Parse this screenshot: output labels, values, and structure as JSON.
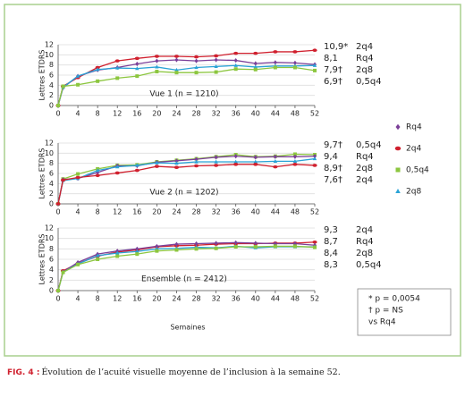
{
  "chart_data": [
    {
      "type": "line",
      "label": "Vue 1 (n = 1210)",
      "y_label": "Lettres ETDRS",
      "x": [
        0,
        1,
        4,
        8,
        12,
        16,
        20,
        24,
        28,
        32,
        36,
        40,
        44,
        48,
        52
      ],
      "xlim": [
        0,
        52
      ],
      "xticks": [
        0,
        4,
        8,
        12,
        16,
        20,
        24,
        28,
        32,
        36,
        40,
        44,
        48,
        52
      ],
      "ylim": [
        0,
        12
      ],
      "yticks": [
        0,
        2,
        4,
        6,
        8,
        10,
        12
      ],
      "grid": true,
      "series": [
        {
          "name": "2q4",
          "color": "#d0202e",
          "marker": "circle",
          "values": [
            0,
            3.8,
            5.5,
            7.5,
            8.8,
            9.3,
            9.7,
            9.7,
            9.6,
            9.8,
            10.3,
            10.3,
            10.6,
            10.6,
            10.9
          ],
          "value_labels": [
            null,
            null,
            null,
            null,
            null,
            null,
            null,
            null,
            null,
            null,
            null,
            null,
            null,
            null,
            "10,9*"
          ]
        },
        {
          "name": "Rq4",
          "color": "#7b3f98",
          "marker": "diamond",
          "values": [
            0,
            3.5,
            5.8,
            7.0,
            7.5,
            8.2,
            8.8,
            9.0,
            8.8,
            9.0,
            8.9,
            8.3,
            8.5,
            8.4,
            8.1
          ],
          "value_labels": [
            null,
            null,
            null,
            null,
            null,
            null,
            null,
            null,
            null,
            null,
            null,
            null,
            null,
            null,
            "8,1"
          ]
        },
        {
          "name": "2q8",
          "color": "#2aa3d6",
          "marker": "triangle",
          "values": [
            0,
            3.6,
            5.8,
            7.1,
            7.4,
            7.3,
            7.6,
            7.0,
            7.5,
            7.7,
            7.9,
            7.6,
            7.8,
            7.8,
            7.9
          ],
          "value_labels": [
            null,
            null,
            null,
            null,
            null,
            null,
            null,
            null,
            null,
            null,
            null,
            null,
            null,
            null,
            "7,9†"
          ]
        },
        {
          "name": "0,5q4",
          "color": "#8cc63f",
          "marker": "square",
          "values": [
            0,
            3.8,
            4.1,
            4.8,
            5.4,
            5.8,
            6.7,
            6.5,
            6.5,
            6.6,
            7.2,
            7.1,
            7.5,
            7.5,
            6.9
          ],
          "value_labels": [
            null,
            null,
            null,
            null,
            null,
            null,
            null,
            null,
            null,
            null,
            null,
            null,
            null,
            null,
            "6,9†"
          ]
        }
      ]
    },
    {
      "type": "line",
      "label": "Vue 2 (n = 1202)",
      "y_label": "Lettres ETDRS",
      "x": [
        0,
        1,
        4,
        8,
        12,
        16,
        20,
        24,
        28,
        32,
        36,
        40,
        44,
        48,
        52
      ],
      "xlim": [
        0,
        52
      ],
      "xticks": [
        0,
        4,
        8,
        12,
        16,
        20,
        24,
        28,
        32,
        36,
        40,
        44,
        48,
        52
      ],
      "ylim": [
        0,
        12
      ],
      "yticks": [
        0,
        2,
        4,
        6,
        8,
        10,
        12
      ],
      "grid": true,
      "series": [
        {
          "name": "0,5q4",
          "color": "#8cc63f",
          "marker": "square",
          "values": [
            0,
            4.9,
            5.9,
            6.9,
            7.6,
            7.7,
            8.3,
            8.6,
            8.9,
            9.3,
            9.7,
            9.3,
            9.4,
            9.8,
            9.7
          ],
          "value_labels": [
            null,
            null,
            null,
            null,
            null,
            null,
            null,
            null,
            null,
            null,
            null,
            null,
            null,
            null,
            "9,7†"
          ]
        },
        {
          "name": "Rq4",
          "color": "#7b3f98",
          "marker": "diamond",
          "values": [
            0,
            4.8,
            5.0,
            6.2,
            7.5,
            7.5,
            8.2,
            8.5,
            8.8,
            9.2,
            9.4,
            9.2,
            9.3,
            9.3,
            9.4
          ],
          "value_labels": [
            null,
            null,
            null,
            null,
            null,
            null,
            null,
            null,
            null,
            null,
            null,
            null,
            null,
            null,
            "9,4"
          ]
        },
        {
          "name": "2q8",
          "color": "#2aa3d6",
          "marker": "triangle",
          "values": [
            0,
            4.6,
            5.0,
            6.6,
            7.3,
            7.6,
            8.1,
            8.0,
            8.3,
            8.3,
            8.3,
            8.3,
            8.4,
            8.4,
            8.9
          ],
          "value_labels": [
            null,
            null,
            null,
            null,
            null,
            null,
            null,
            null,
            null,
            null,
            null,
            null,
            null,
            null,
            "8,9†"
          ]
        },
        {
          "name": "2q4",
          "color": "#d0202e",
          "marker": "circle",
          "values": [
            0,
            4.7,
            5.2,
            5.6,
            6.1,
            6.6,
            7.4,
            7.2,
            7.5,
            7.6,
            7.8,
            7.8,
            7.3,
            7.8,
            7.6
          ],
          "value_labels": [
            null,
            null,
            null,
            null,
            null,
            null,
            null,
            null,
            null,
            null,
            null,
            null,
            null,
            null,
            "7,6†"
          ]
        }
      ]
    },
    {
      "type": "line",
      "label": "Ensemble (n = 2412)",
      "y_label": "Lettres ETDRS",
      "x_label": "Semaines",
      "x": [
        0,
        1,
        4,
        8,
        12,
        16,
        20,
        24,
        28,
        32,
        36,
        40,
        44,
        48,
        52
      ],
      "xlim": [
        0,
        52
      ],
      "xticks": [
        0,
        4,
        8,
        12,
        16,
        20,
        24,
        28,
        32,
        36,
        40,
        44,
        48,
        52
      ],
      "ylim": [
        0,
        12
      ],
      "yticks": [
        0,
        2,
        4,
        6,
        8,
        10,
        12
      ],
      "grid": true,
      "series": [
        {
          "name": "2q4",
          "color": "#d0202e",
          "marker": "circle",
          "values": [
            0,
            3.8,
            5.2,
            6.6,
            7.4,
            7.8,
            8.4,
            8.6,
            8.7,
            8.9,
            9.0,
            9.0,
            9.1,
            9.1,
            9.3
          ],
          "value_labels": [
            null,
            null,
            null,
            null,
            null,
            null,
            null,
            null,
            null,
            null,
            null,
            null,
            null,
            null,
            "9,3"
          ]
        },
        {
          "name": "Rq4",
          "color": "#7b3f98",
          "marker": "diamond",
          "values": [
            0,
            3.6,
            5.4,
            7.0,
            7.6,
            8.0,
            8.5,
            8.9,
            9.0,
            9.1,
            9.2,
            9.1,
            9.0,
            9.0,
            8.7
          ],
          "value_labels": [
            null,
            null,
            null,
            null,
            null,
            null,
            null,
            null,
            null,
            null,
            null,
            null,
            null,
            null,
            "8,7"
          ]
        },
        {
          "name": "2q8",
          "color": "#2aa3d6",
          "marker": "triangle",
          "values": [
            0,
            3.5,
            5.1,
            6.7,
            7.2,
            7.5,
            8.0,
            8.1,
            8.3,
            8.2,
            8.5,
            8.2,
            8.4,
            8.4,
            8.4
          ],
          "value_labels": [
            null,
            null,
            null,
            null,
            null,
            null,
            null,
            null,
            null,
            null,
            null,
            null,
            null,
            null,
            "8,4"
          ]
        },
        {
          "name": "0,5q4",
          "color": "#8cc63f",
          "marker": "square",
          "values": [
            0,
            3.5,
            5.0,
            6.0,
            6.6,
            7.0,
            7.6,
            7.8,
            8.0,
            8.1,
            8.4,
            8.4,
            8.5,
            8.5,
            8.3
          ],
          "value_labels": [
            null,
            null,
            null,
            null,
            null,
            null,
            null,
            null,
            null,
            null,
            null,
            null,
            null,
            null,
            "8,3"
          ]
        }
      ]
    }
  ],
  "legend": [
    {
      "name": "Rq4",
      "color": "#7b3f98",
      "marker": "diamond"
    },
    {
      "name": "2q4",
      "color": "#d0202e",
      "marker": "circle"
    },
    {
      "name": "0,5q4",
      "color": "#8cc63f",
      "marker": "square"
    },
    {
      "name": "2q8",
      "color": "#2aa3d6",
      "marker": "triangle"
    }
  ],
  "footnotes": [
    "* p = 0,0054",
    "† p = NS",
    "vs Rq4"
  ],
  "caption": {
    "label": "FIG. 4 :",
    "text": "Évolution de l’acuité visuelle moyenne de l’inclusion à la semaine 52."
  }
}
